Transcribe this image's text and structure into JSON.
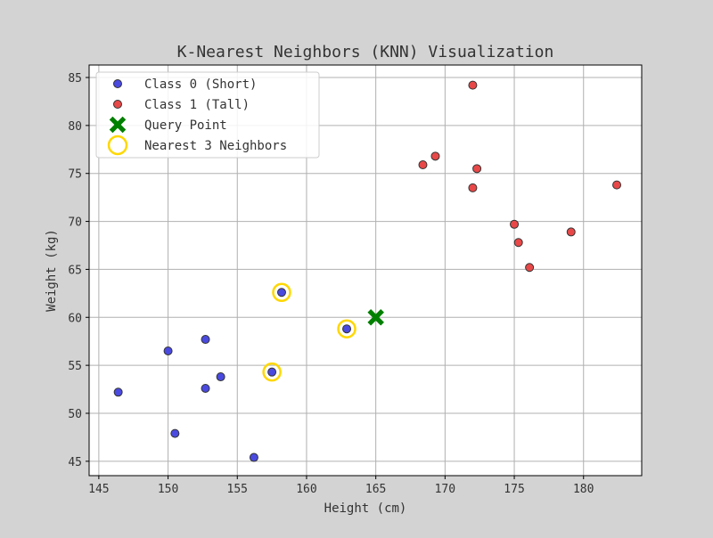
{
  "chart_data": {
    "type": "scatter",
    "title": "K-Nearest Neighbors (KNN) Visualization",
    "xlabel": "Height (cm)",
    "ylabel": "Weight (kg)",
    "xlim": [
      144.3,
      184.2
    ],
    "ylim": [
      43.5,
      86.3
    ],
    "xticks": [
      145,
      150,
      155,
      160,
      165,
      170,
      175,
      180
    ],
    "yticks": [
      45,
      50,
      55,
      60,
      65,
      70,
      75,
      80,
      85
    ],
    "grid": true,
    "legend_position": "top-left",
    "series": [
      {
        "name": "Class 0 (Short)",
        "marker": "circle",
        "color": "#4a4ae0",
        "points": [
          {
            "x": 146.4,
            "y": 52.2
          },
          {
            "x": 150.0,
            "y": 56.5
          },
          {
            "x": 150.5,
            "y": 47.9
          },
          {
            "x": 152.7,
            "y": 57.7
          },
          {
            "x": 152.7,
            "y": 52.6
          },
          {
            "x": 153.8,
            "y": 53.8
          },
          {
            "x": 156.2,
            "y": 45.4
          },
          {
            "x": 157.5,
            "y": 54.3
          },
          {
            "x": 158.2,
            "y": 62.6
          },
          {
            "x": 162.9,
            "y": 58.8
          }
        ]
      },
      {
        "name": "Class 1 (Tall)",
        "marker": "circle",
        "color": "#e84848",
        "points": [
          {
            "x": 168.4,
            "y": 75.9
          },
          {
            "x": 169.3,
            "y": 76.8
          },
          {
            "x": 172.0,
            "y": 84.2
          },
          {
            "x": 172.0,
            "y": 73.5
          },
          {
            "x": 172.3,
            "y": 75.5
          },
          {
            "x": 175.0,
            "y": 69.7
          },
          {
            "x": 175.3,
            "y": 67.8
          },
          {
            "x": 176.1,
            "y": 65.2
          },
          {
            "x": 179.1,
            "y": 68.9
          },
          {
            "x": 182.4,
            "y": 73.8
          }
        ]
      },
      {
        "name": "Query Point",
        "marker": "x-filled",
        "color": "#008000",
        "points": [
          {
            "x": 165.0,
            "y": 60.0
          }
        ]
      },
      {
        "name": "Nearest 3 Neighbors",
        "marker": "ring",
        "color": "#ffd700",
        "points": [
          {
            "x": 162.9,
            "y": 58.8
          },
          {
            "x": 157.5,
            "y": 54.3
          },
          {
            "x": 158.2,
            "y": 62.6
          }
        ]
      }
    ]
  }
}
